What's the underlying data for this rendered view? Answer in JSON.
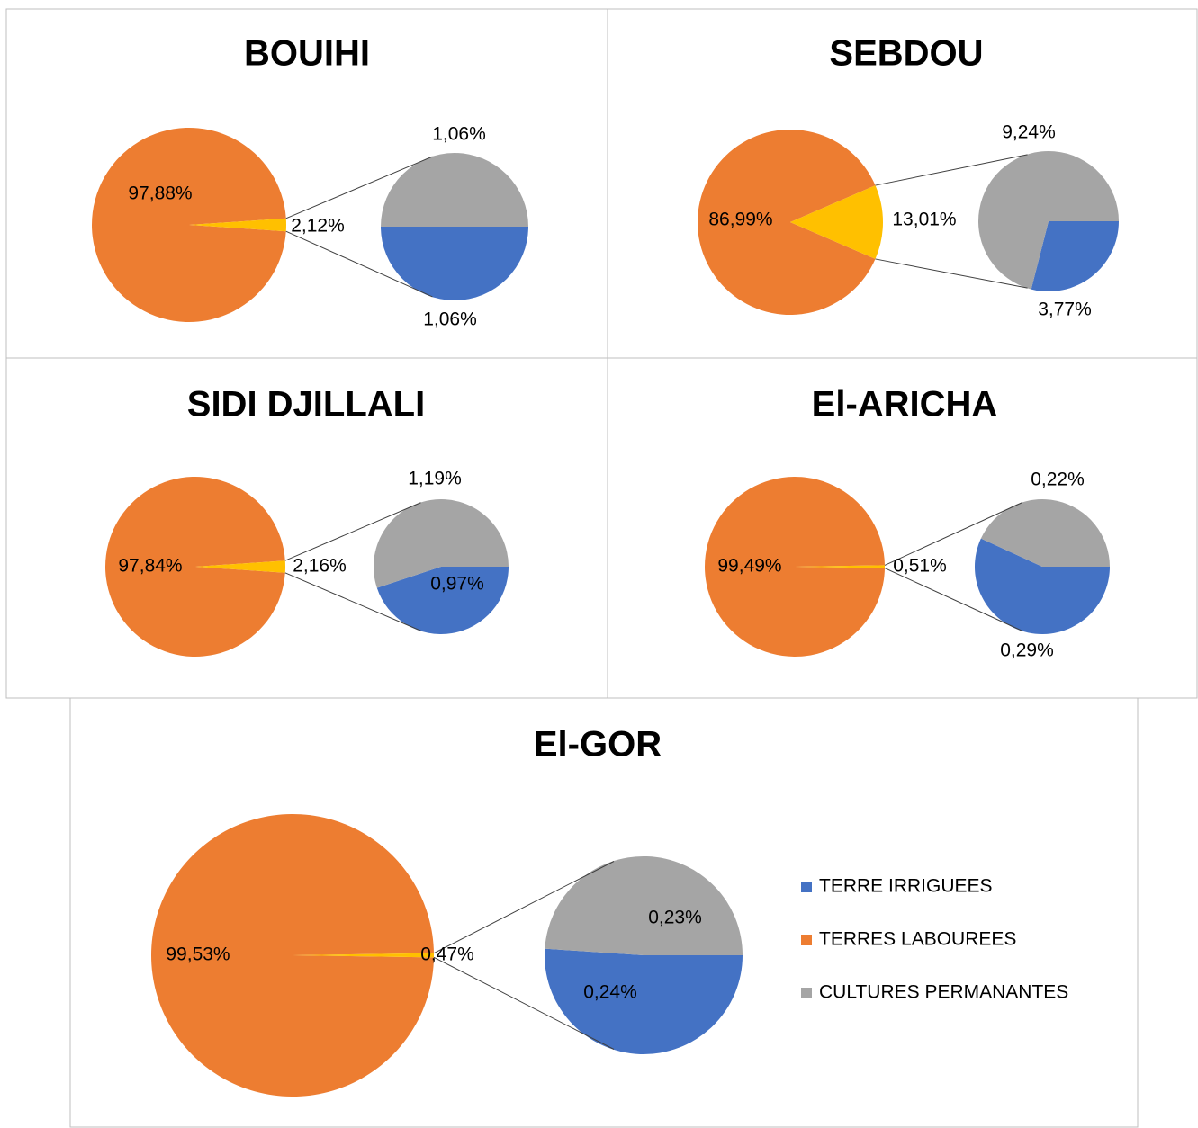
{
  "chart_data": [
    {
      "type": "pie-of-pie",
      "title": "BOUIHI",
      "values": [
        97.88,
        2.12
      ],
      "value_labels": [
        "97,88%",
        "2,12%"
      ],
      "colors": [
        "#ed7d31",
        "#ffc000"
      ],
      "sub_values": [
        1.06,
        1.06
      ],
      "sub_value_labels": [
        "1,06%",
        "1,06%"
      ],
      "sub_colors": [
        "#4472c4",
        "#a5a5a5"
      ]
    },
    {
      "type": "pie-of-pie",
      "title": "SEBDOU",
      "values": [
        86.99,
        13.01
      ],
      "value_labels": [
        "86,99%",
        "13,01%"
      ],
      "colors": [
        "#ed7d31",
        "#ffc000"
      ],
      "sub_values": [
        3.77,
        9.24
      ],
      "sub_value_labels": [
        "3,77%",
        "9,24%"
      ],
      "sub_colors": [
        "#4472c4",
        "#a5a5a5"
      ]
    },
    {
      "type": "pie-of-pie",
      "title": "SIDI DJILLALI",
      "values": [
        97.84,
        2.16
      ],
      "value_labels": [
        "97,84%",
        "2,16%"
      ],
      "colors": [
        "#ed7d31",
        "#ffc000"
      ],
      "sub_values": [
        0.97,
        1.19
      ],
      "sub_value_labels": [
        "0,97%",
        "1,19%"
      ],
      "sub_colors": [
        "#4472c4",
        "#a5a5a5"
      ]
    },
    {
      "type": "pie-of-pie",
      "title": "El-ARICHA",
      "values": [
        99.49,
        0.51
      ],
      "value_labels": [
        "99,49%",
        "0,51%"
      ],
      "colors": [
        "#ed7d31",
        "#ffc000"
      ],
      "sub_values": [
        0.29,
        0.22
      ],
      "sub_value_labels": [
        "0,29%",
        "0,22%"
      ],
      "sub_colors": [
        "#4472c4",
        "#a5a5a5"
      ]
    },
    {
      "type": "pie-of-pie",
      "title": "El-GOR",
      "values": [
        99.53,
        0.47
      ],
      "value_labels": [
        "99,53%",
        "0,47%"
      ],
      "colors": [
        "#ed7d31",
        "#ffc000"
      ],
      "sub_values": [
        0.24,
        0.23
      ],
      "sub_value_labels": [
        "0,24%",
        "0,23%"
      ],
      "sub_colors": [
        "#4472c4",
        "#a5a5a5"
      ],
      "legend": [
        {
          "name": "TERRE IRRIGUEES",
          "color": "#4472c4"
        },
        {
          "name": "TERRES LABOUREES",
          "color": "#ed7d31"
        },
        {
          "name": "CULTURES PERMANANTES",
          "color": "#a5a5a5"
        }
      ]
    }
  ]
}
